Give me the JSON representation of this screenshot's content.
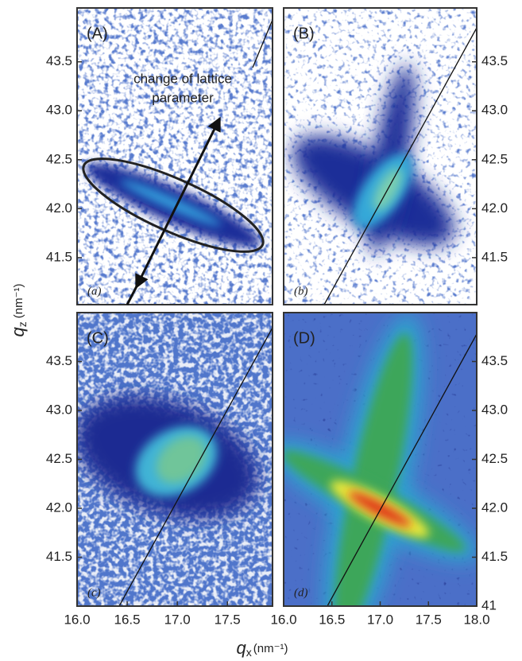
{
  "figure": {
    "ylabel_symbol": "q",
    "ylabel_subscript": "z",
    "ylabel_unit": "(nm⁻¹)",
    "xlabel_symbol": "q",
    "xlabel_subscript": "x",
    "xlabel_unit": "(nm⁻¹)"
  },
  "chart_data": [
    {
      "type": "heatmap",
      "panel_label": "(A)",
      "sublabel": "(a)",
      "annotation": [
        "change of lattice",
        "parameter"
      ],
      "xlim": [
        16.0,
        17.95
      ],
      "ylim": [
        41.02,
        44.05
      ],
      "yticks": [
        41.5,
        {
          "value": 42,
          "label": "42.0"
        },
        42.5,
        {
          "value": 43,
          "label": "43.0"
        },
        43.5
      ]
    },
    {
      "type": "heatmap",
      "panel_label": "(B)",
      "sublabel": "(b)",
      "xlim": [
        16.0,
        18.0
      ],
      "ylim": [
        41.02,
        44.05
      ],
      "yticks": [
        41.5,
        {
          "value": 42,
          "label": "42.0"
        },
        42.5,
        {
          "value": 43,
          "label": "43.0"
        },
        43.5
      ]
    },
    {
      "type": "heatmap",
      "panel_label": "(C)",
      "sublabel": "(c)",
      "xlim": [
        16.0,
        17.95
      ],
      "ylim": [
        41.0,
        44.0
      ],
      "yticks": [
        41.5,
        {
          "value": 42,
          "label": "42.0"
        },
        42.5,
        {
          "value": 43,
          "label": "43.0"
        },
        43.5
      ],
      "xticks": [
        {
          "value": 16,
          "label": "16.0"
        },
        16.5,
        {
          "value": 17,
          "label": "17.0"
        },
        17.5
      ]
    },
    {
      "type": "heatmap",
      "panel_label": "(D)",
      "sublabel": "(d)",
      "xlim": [
        16.0,
        18.0
      ],
      "ylim": [
        41.0,
        44.0
      ],
      "yticks": [
        41,
        41.5,
        {
          "value": 42,
          "label": "42.0"
        },
        42.5,
        {
          "value": 43,
          "label": "43.0"
        },
        43.5
      ],
      "xticks": [
        {
          "value": 16,
          "label": "16.0"
        },
        16.5,
        {
          "value": 17,
          "label": "17.0"
        },
        17.5,
        {
          "value": 18,
          "label": "18.0"
        }
      ]
    }
  ]
}
